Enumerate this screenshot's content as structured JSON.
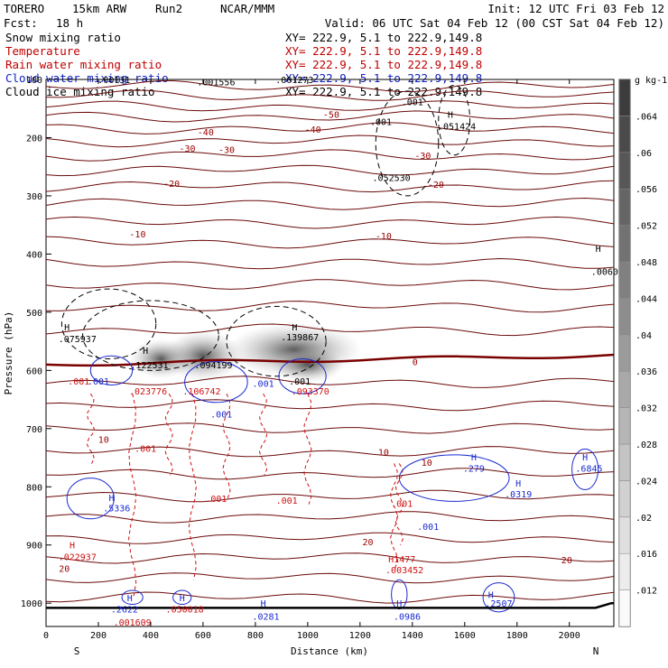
{
  "header": {
    "model": "TORERO",
    "config": "15km ARW",
    "run": "Run2",
    "org": "NCAR/MMM",
    "init": "Init: 12 UTC Fri 03 Feb 12",
    "fcst_label": "Fcst:",
    "fcst_value": "18 h",
    "valid": "Valid: 06 UTC Sat 04 Feb 12 (00 CST Sat 04 Feb 12)"
  },
  "fields": [
    {
      "name": "Snow mixing ratio",
      "xy": "XY= 222.9,  5.1 to 222.9,149.8",
      "color": "#000000"
    },
    {
      "name": "Temperature",
      "xy": "XY= 222.9,  5.1 to 222.9,149.8",
      "color": "#c00000"
    },
    {
      "name": "Rain water mixing ratio",
      "xy": "XY= 222.9,  5.1 to 222.9,149.8",
      "color": "#c00000"
    },
    {
      "name": "Cloud water mixing ratio",
      "xy": "XY= 222.9,  5.1 to 222.9,149.8",
      "color": "#1020c0"
    },
    {
      "name": "Cloud ice mixing ratio",
      "xy": "XY= 222.9,  5.1 to 222.9,149.8",
      "color": "#000000"
    }
  ],
  "colors": {
    "temperature": "#6b0a0a",
    "zero_isotherm": "#7a0000",
    "rain": "#d01010",
    "cloud_water": "#1a2ad0",
    "cloud_ice": "#000000",
    "label_red": "#9a0000"
  },
  "chart_data": {
    "type": "contour",
    "xlabel": "Distance (km)",
    "ylabel": "Pressure (hPa)",
    "xlim": [
      0,
      2170
    ],
    "ylim": [
      100,
      1040
    ],
    "x_ticks": [
      "0",
      "200",
      "400",
      "600",
      "800",
      "1000",
      "1200",
      "1400",
      "1600",
      "1800",
      "2000"
    ],
    "x_tick_values": [
      0,
      200,
      400,
      600,
      800,
      1000,
      1200,
      1400,
      1600,
      1800,
      2000
    ],
    "y_ticks": [
      "100",
      "200",
      "300",
      "400",
      "500",
      "600",
      "700",
      "800",
      "900",
      "1000"
    ],
    "y_tick_values": [
      100,
      200,
      300,
      400,
      500,
      600,
      700,
      800,
      900,
      1000
    ],
    "end_left": "S",
    "end_right": "N",
    "colorbar": {
      "unit": "g kg-1",
      "ticks": [
        ".012",
        ".016",
        ".02",
        ".024",
        ".028",
        ".032",
        ".036",
        ".04",
        ".044",
        ".048",
        ".052",
        ".056",
        ".06",
        ".064"
      ]
    },
    "temperature_labels": [
      {
        "text": "-50",
        "x": 1090,
        "p": 160
      },
      {
        "text": "-40",
        "x": 1020,
        "p": 185
      },
      {
        "text": "-40",
        "x": 610,
        "p": 190
      },
      {
        "text": "-30",
        "x": 540,
        "p": 218
      },
      {
        "text": "-30",
        "x": 690,
        "p": 220
      },
      {
        "text": "-30",
        "x": 1440,
        "p": 230
      },
      {
        "text": "-20",
        "x": 480,
        "p": 278
      },
      {
        "text": "-20",
        "x": 1490,
        "p": 280
      },
      {
        "text": "-10",
        "x": 350,
        "p": 365
      },
      {
        "text": "-10",
        "x": 1290,
        "p": 368
      },
      {
        "text": "0",
        "x": 1410,
        "p": 585
      },
      {
        "text": "10",
        "x": 220,
        "p": 718
      },
      {
        "text": "10",
        "x": 1290,
        "p": 740
      },
      {
        "text": "10",
        "x": 1455,
        "p": 758
      },
      {
        "text": "20",
        "x": 1230,
        "p": 894
      },
      {
        "text": "20",
        "x": 1990,
        "p": 925
      },
      {
        "text": "20",
        "x": 70,
        "p": 940
      }
    ],
    "annotations": [
      {
        "text": ".00131",
        "x": 260,
        "p": 100,
        "kind": "ice"
      },
      {
        "text": ".001556",
        "x": 650,
        "p": 104,
        "kind": "ice"
      },
      {
        "text": ".001273",
        "x": 950,
        "p": 100,
        "kind": "ice"
      },
      {
        "text": ".001",
        "x": 1400,
        "p": 138,
        "kind": "ice"
      },
      {
        "text": ".001",
        "x": 1280,
        "p": 172,
        "kind": "ice"
      },
      {
        "text": "H",
        "x": 1545,
        "p": 160,
        "kind": "ice"
      },
      {
        "text": ".051424",
        "x": 1570,
        "p": 180,
        "kind": "ice"
      },
      {
        "text": ".052530",
        "x": 1320,
        "p": 268,
        "kind": "ice"
      },
      {
        "text": "H",
        "x": 2110,
        "p": 390,
        "kind": "ice"
      },
      {
        "text": ".0060",
        "x": 2135,
        "p": 430,
        "kind": "ice"
      },
      {
        "text": "H",
        "x": 80,
        "p": 525,
        "kind": "ice"
      },
      {
        "text": ".075937",
        "x": 120,
        "p": 545,
        "kind": "ice"
      },
      {
        "text": "H",
        "x": 380,
        "p": 565,
        "kind": "ice"
      },
      {
        "text": ".122531",
        "x": 395,
        "p": 590,
        "kind": "ice"
      },
      {
        "text": ".094199",
        "x": 640,
        "p": 590,
        "kind": "ice"
      },
      {
        "text": "H",
        "x": 950,
        "p": 525,
        "kind": "ice"
      },
      {
        "text": ".139867",
        "x": 970,
        "p": 542,
        "kind": "ice"
      },
      {
        "text": ".001",
        "x": 125,
        "p": 618,
        "kind": "rain"
      },
      {
        "text": ".001",
        "x": 200,
        "p": 618,
        "kind": "cloud"
      },
      {
        "text": ".023776",
        "x": 390,
        "p": 635,
        "kind": "rain"
      },
      {
        "text": ".106742",
        "x": 595,
        "p": 635,
        "kind": "rain"
      },
      {
        "text": ".001",
        "x": 670,
        "p": 675,
        "kind": "cloud"
      },
      {
        "text": ".001",
        "x": 830,
        "p": 622,
        "kind": "cloud"
      },
      {
        "text": ".001",
        "x": 970,
        "p": 618,
        "kind": "ice"
      },
      {
        "text": ".093370",
        "x": 1010,
        "p": 635,
        "kind": "rain"
      },
      {
        "text": ".001",
        "x": 380,
        "p": 734,
        "kind": "rain"
      },
      {
        "text": "H",
        "x": 1635,
        "p": 748,
        "kind": "cloud"
      },
      {
        "text": ".279",
        "x": 1635,
        "p": 768,
        "kind": "cloud"
      },
      {
        "text": "H",
        "x": 2060,
        "p": 748,
        "kind": "cloud"
      },
      {
        "text": ".6845",
        "x": 2075,
        "p": 768,
        "kind": "cloud"
      },
      {
        "text": "H",
        "x": 1805,
        "p": 793,
        "kind": "cloud"
      },
      {
        "text": ".0319",
        "x": 1805,
        "p": 812,
        "kind": "cloud"
      },
      {
        "text": "H",
        "x": 250,
        "p": 818,
        "kind": "cloud"
      },
      {
        "text": ".5336",
        "x": 270,
        "p": 836,
        "kind": "cloud"
      },
      {
        "text": ".001",
        "x": 650,
        "p": 820,
        "kind": "rain"
      },
      {
        "text": ".001",
        "x": 920,
        "p": 823,
        "kind": "rain"
      },
      {
        "text": ".001",
        "x": 1360,
        "p": 828,
        "kind": "rain"
      },
      {
        "text": ".001",
        "x": 1460,
        "p": 868,
        "kind": "cloud"
      },
      {
        "text": "H",
        "x": 100,
        "p": 900,
        "kind": "rain"
      },
      {
        "text": ".022937",
        "x": 120,
        "p": 920,
        "kind": "rain"
      },
      {
        "text": "H1477",
        "x": 1360,
        "p": 924,
        "kind": "rain"
      },
      {
        "text": ".003452",
        "x": 1370,
        "p": 942,
        "kind": "rain"
      },
      {
        "text": "H",
        "x": 320,
        "p": 990,
        "kind": "cloud"
      },
      {
        "text": ".2622",
        "x": 300,
        "p": 1010,
        "kind": "cloud"
      },
      {
        "text": "H",
        "x": 520,
        "p": 990,
        "kind": "cloud"
      },
      {
        "text": ".050018",
        "x": 530,
        "p": 1010,
        "kind": "rain"
      },
      {
        "text": "H",
        "x": 830,
        "p": 1000,
        "kind": "cloud"
      },
      {
        "text": ".0281",
        "x": 840,
        "p": 1022,
        "kind": "cloud"
      },
      {
        "text": "H",
        "x": 1350,
        "p": 1000,
        "kind": "cloud"
      },
      {
        "text": ".0986",
        "x": 1380,
        "p": 1022,
        "kind": "cloud"
      },
      {
        "text": "H",
        "x": 1700,
        "p": 985,
        "kind": "cloud"
      },
      {
        "text": ".2507",
        "x": 1730,
        "p": 1000,
        "kind": "cloud"
      },
      {
        "text": ".001609",
        "x": 330,
        "p": 1032,
        "kind": "rain"
      }
    ]
  }
}
